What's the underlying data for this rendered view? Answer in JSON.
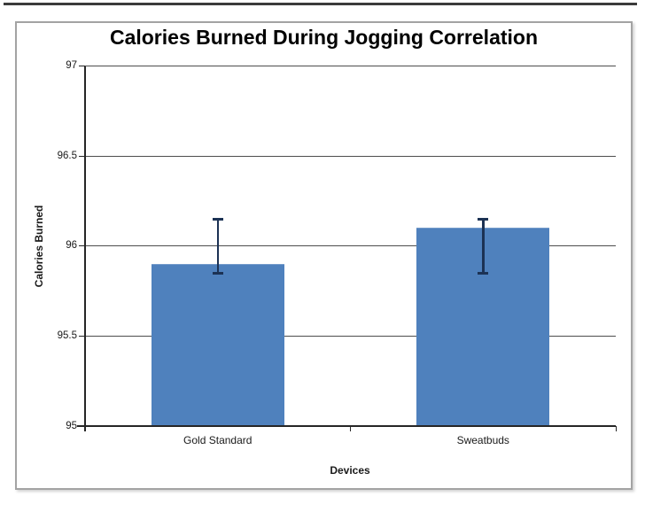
{
  "window": {
    "top_edge_color": "#3b3b3b",
    "frame_border_color": "#a3a3a3",
    "background": "#ffffff"
  },
  "chart_data": {
    "type": "bar",
    "title": "Calories Burned During Jogging Correlation",
    "xlabel": "Devices",
    "ylabel": "Calories Burned",
    "categories": [
      "Gold Standard",
      "Sweatbuds"
    ],
    "values": [
      95.9,
      96.1
    ],
    "error_bars": [
      {
        "low": 95.85,
        "high": 96.15
      },
      {
        "low": 95.85,
        "high": 96.15
      }
    ],
    "ylim": [
      95,
      97
    ],
    "yticks": [
      95,
      95.5,
      96,
      96.5,
      97
    ],
    "ytick_labels": [
      "95",
      "95.5",
      "96",
      "96.5",
      "97"
    ],
    "grid": true,
    "legend": false,
    "bar_color": "#4f81bd",
    "error_bar_color": "#1c3254",
    "gridline_color": "#4d4d4d",
    "axis_color": "#262626",
    "text_color": "#1a1a1a"
  }
}
